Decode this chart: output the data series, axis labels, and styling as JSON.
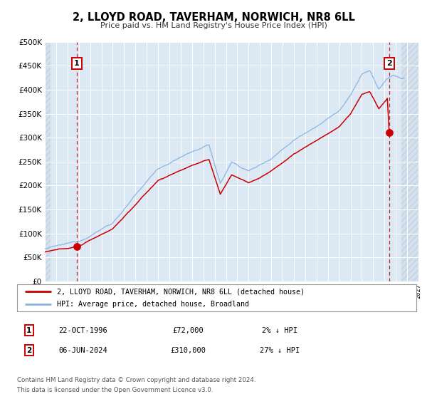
{
  "title": "2, LLOYD ROAD, TAVERHAM, NORWICH, NR8 6LL",
  "subtitle": "Price paid vs. HM Land Registry's House Price Index (HPI)",
  "plot_bg_color": "#dce9f5",
  "fig_bg_color": "#ffffff",
  "grid_color": "#c8d8ec",
  "hpi_color": "#8ab4e0",
  "price_color": "#cc0000",
  "sale1_date": "22-OCT-1996",
  "sale1_price": "£72,000",
  "sale1_hpi": "2% ↓ HPI",
  "sale1_year": 1996.8,
  "sale1_value": 72000,
  "sale2_date": "06-JUN-2024",
  "sale2_price": "£310,000",
  "sale2_hpi": "27% ↓ HPI",
  "sale2_year": 2024.45,
  "sale2_value": 310000,
  "legend_label1": "2, LLOYD ROAD, TAVERHAM, NORWICH, NR8 6LL (detached house)",
  "legend_label2": "HPI: Average price, detached house, Broadland",
  "footer1": "Contains HM Land Registry data © Crown copyright and database right 2024.",
  "footer2": "This data is licensed under the Open Government Licence v3.0.",
  "xmin": 1994,
  "xmax": 2027,
  "ymin": 0,
  "ymax": 500000,
  "yticks": [
    0,
    50000,
    100000,
    150000,
    200000,
    250000,
    300000,
    350000,
    400000,
    450000,
    500000
  ]
}
